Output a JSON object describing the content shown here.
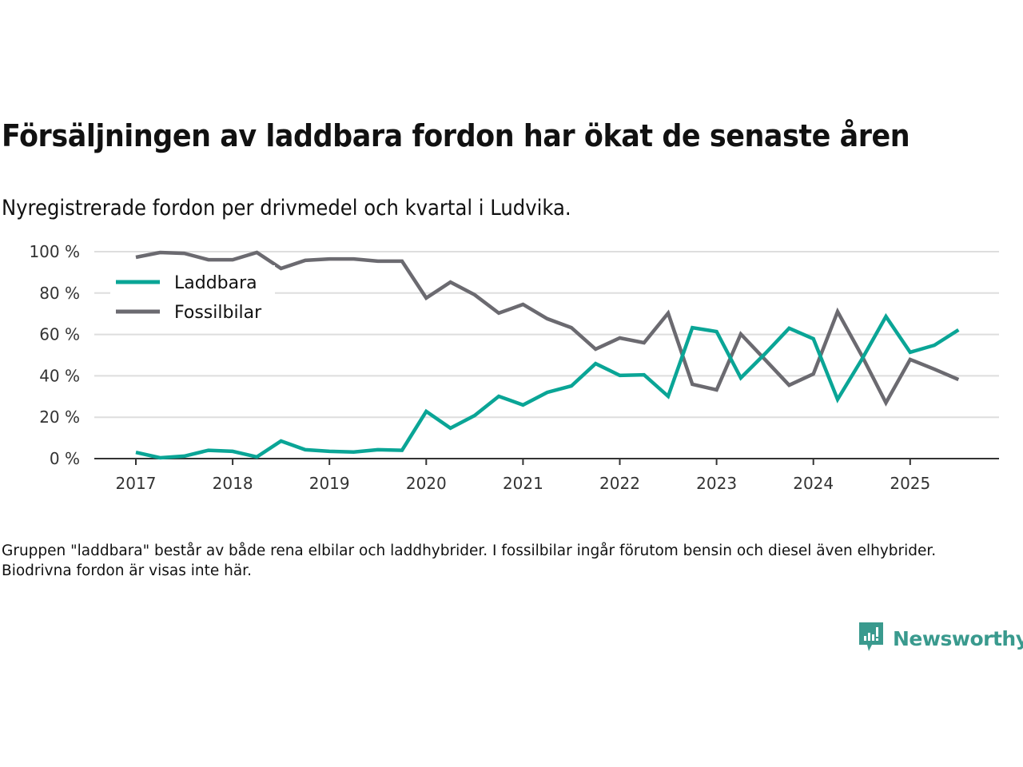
{
  "header": {
    "title": "Försäljningen av laddbara fordon har ökat de senaste åren",
    "subtitle": "Nyregistrerade fordon per drivmedel och kvartal i Ludvika."
  },
  "footer": {
    "note": "Gruppen \"laddbara\" består av både rena elbilar och laddhybrider. I fossilbilar ingår förutom bensin och diesel även elhybrider. Biodrivna fordon är visas inte här.",
    "brand_name": "Newsworthy",
    "brand_color": "#3a9a8e"
  },
  "chart_data": {
    "type": "line",
    "title": "Försäljningen av laddbara fordon har ökat de senaste åren",
    "subtitle": "Nyregistrerade fordon per drivmedel och kvartal i Ludvika.",
    "xlabel": "",
    "ylabel": "",
    "ylim": [
      0,
      100
    ],
    "xlim": [
      2016.6,
      2026.0
    ],
    "grid": true,
    "legend_position": "top-left",
    "y_ticks": [
      0,
      20,
      40,
      60,
      80,
      100
    ],
    "y_tick_labels": [
      "0 %",
      "20 %",
      "40 %",
      "60 %",
      "80 %",
      "100 %"
    ],
    "x_ticks": [
      2017,
      2018,
      2019,
      2020,
      2021,
      2022,
      2023,
      2024,
      2025
    ],
    "x_tick_labels": [
      "2017",
      "2018",
      "2019",
      "2020",
      "2021",
      "2022",
      "2023",
      "2024",
      "2025"
    ],
    "x": [
      2017.0,
      2017.25,
      2017.5,
      2017.75,
      2018.0,
      2018.25,
      2018.5,
      2018.75,
      2019.0,
      2019.25,
      2019.5,
      2019.75,
      2020.0,
      2020.25,
      2020.5,
      2020.75,
      2021.0,
      2021.25,
      2021.5,
      2021.75,
      2022.0,
      2022.25,
      2022.5,
      2022.75,
      2023.0,
      2023.25,
      2023.5,
      2023.75,
      2024.0,
      2024.25,
      2024.5,
      2024.75,
      2025.0,
      2025.25,
      2025.5
    ],
    "series": [
      {
        "name": "Laddbara",
        "color": "#0aa596",
        "values": [
          3.0,
          0.4,
          1.2,
          4.0,
          3.5,
          0.8,
          8.5,
          4.3,
          3.5,
          3.2,
          4.3,
          4.0,
          22.8,
          14.7,
          20.8,
          30.1,
          25.9,
          32.0,
          35.1,
          45.9,
          40.2,
          40.5,
          30.1,
          63.3,
          61.4,
          39.0,
          50.6,
          63.0,
          57.9,
          28.6,
          47.9,
          68.7,
          51.4,
          54.8,
          62.2
        ]
      },
      {
        "name": "Fossilbilar",
        "color": "#6b6a70",
        "values": [
          97.3,
          99.6,
          99.2,
          96.1,
          96.1,
          99.6,
          91.9,
          95.8,
          96.5,
          96.5,
          95.4,
          95.4,
          77.6,
          85.3,
          79.2,
          70.3,
          74.5,
          67.6,
          63.3,
          52.9,
          58.3,
          56.0,
          70.3,
          35.9,
          33.2,
          60.2,
          47.9,
          35.5,
          40.9,
          71.0,
          49.8,
          27.0,
          47.9,
          43.2,
          38.2
        ]
      }
    ]
  }
}
